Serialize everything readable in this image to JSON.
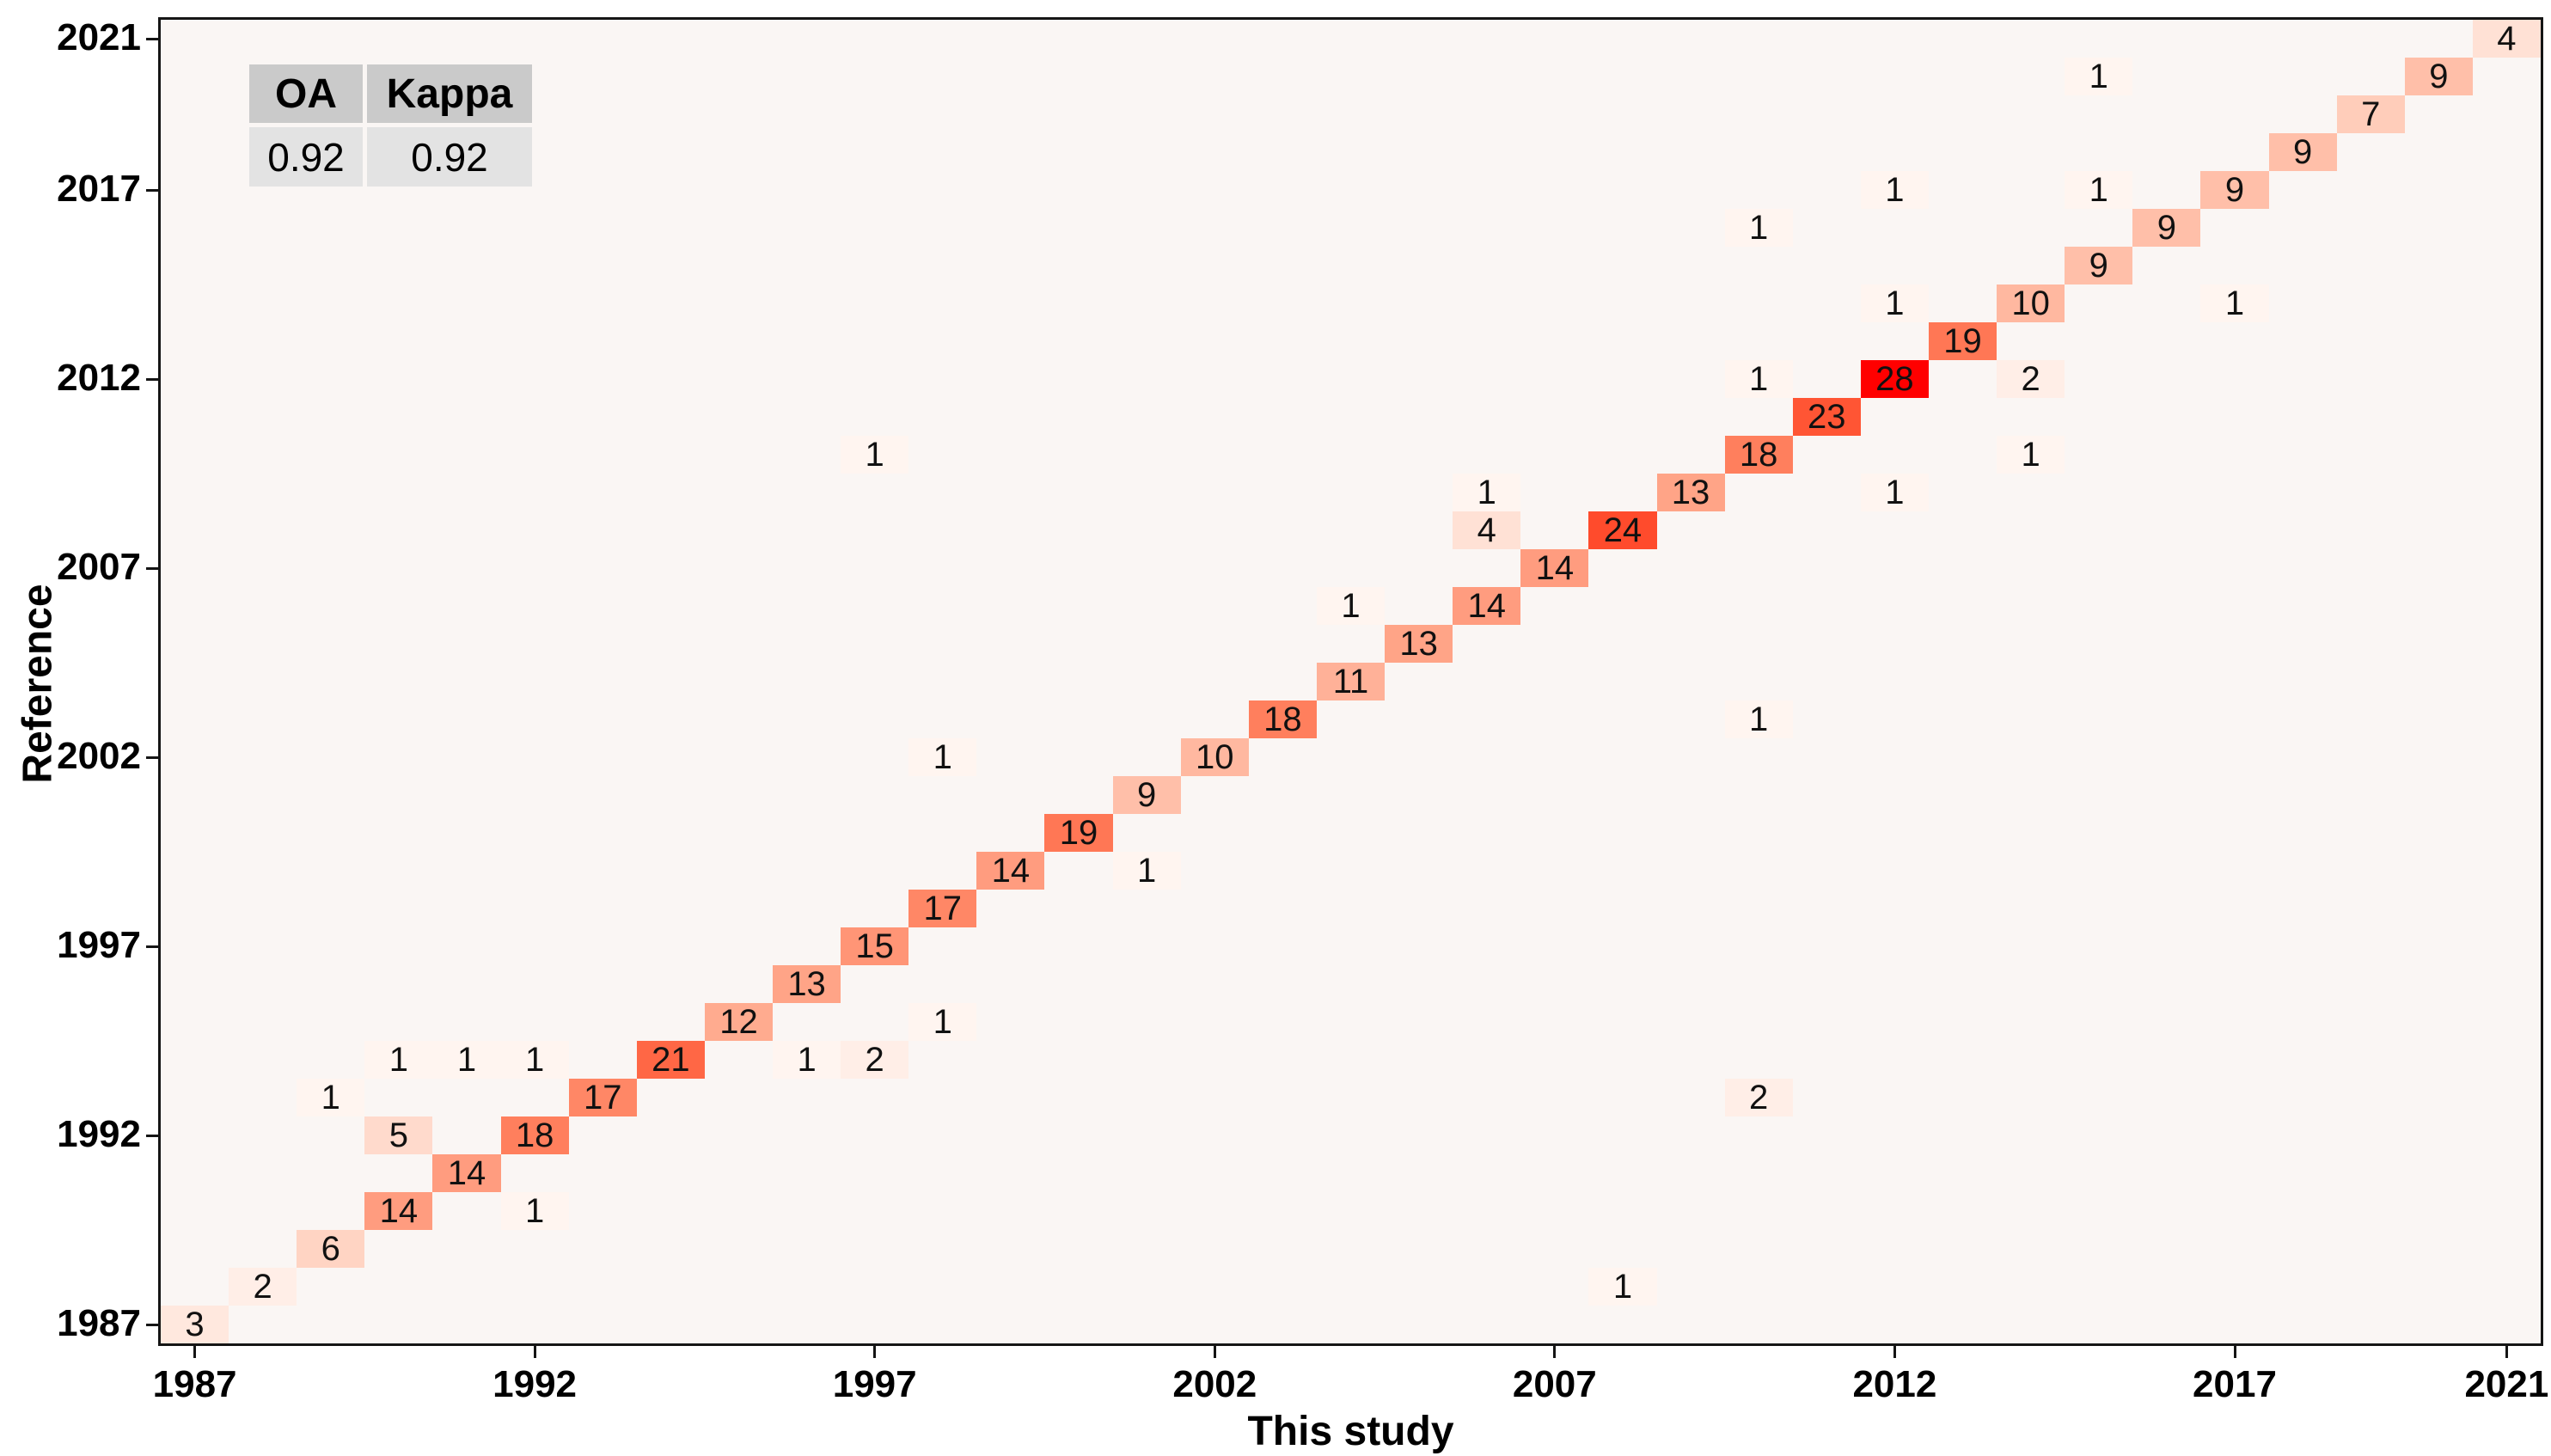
{
  "accuracy_table": {
    "oa_label": "OA",
    "kappa_label": "Kappa",
    "oa_value": "0.92",
    "kappa_value": "0.92"
  },
  "axes": {
    "x_title": "This study",
    "y_title": "Reference",
    "x_ticks": [
      1987,
      1992,
      1997,
      2002,
      2007,
      2012,
      2017,
      2021
    ],
    "y_ticks": [
      1987,
      1992,
      1997,
      2002,
      2007,
      2012,
      2017,
      2021
    ]
  },
  "chart_data": {
    "type": "heatmap",
    "title": "Confusion matrix of mapped change year (This study) vs reference change year",
    "xlabel": "This study",
    "ylabel": "Reference",
    "x_range": [
      1987,
      2021
    ],
    "y_range": [
      1987,
      2021
    ],
    "overall_accuracy": 0.92,
    "kappa": 0.92,
    "legend_position": "none",
    "grid": false,
    "colormap": {
      "low_color": "#fff5f0",
      "high_color": "#ff0000",
      "low_value": 1,
      "high_value": 28
    },
    "cells": [
      {
        "x": 1987,
        "y": 1987,
        "v": 3
      },
      {
        "x": 1988,
        "y": 1988,
        "v": 2
      },
      {
        "x": 2008,
        "y": 1988,
        "v": 1
      },
      {
        "x": 1989,
        "y": 1989,
        "v": 6
      },
      {
        "x": 1990,
        "y": 1990,
        "v": 14
      },
      {
        "x": 1992,
        "y": 1990,
        "v": 1
      },
      {
        "x": 1991,
        "y": 1991,
        "v": 14
      },
      {
        "x": 1990,
        "y": 1992,
        "v": 5
      },
      {
        "x": 1992,
        "y": 1992,
        "v": 18
      },
      {
        "x": 1989,
        "y": 1993,
        "v": 1
      },
      {
        "x": 1993,
        "y": 1993,
        "v": 17
      },
      {
        "x": 2010,
        "y": 1993,
        "v": 2
      },
      {
        "x": 1990,
        "y": 1994,
        "v": 1
      },
      {
        "x": 1991,
        "y": 1994,
        "v": 1
      },
      {
        "x": 1992,
        "y": 1994,
        "v": 1
      },
      {
        "x": 1994,
        "y": 1994,
        "v": 21
      },
      {
        "x": 1996,
        "y": 1994,
        "v": 1
      },
      {
        "x": 1997,
        "y": 1994,
        "v": 2
      },
      {
        "x": 1995,
        "y": 1995,
        "v": 12
      },
      {
        "x": 1998,
        "y": 1995,
        "v": 1
      },
      {
        "x": 1996,
        "y": 1996,
        "v": 13
      },
      {
        "x": 1997,
        "y": 1997,
        "v": 15
      },
      {
        "x": 1998,
        "y": 1998,
        "v": 17
      },
      {
        "x": 1999,
        "y": 1999,
        "v": 14
      },
      {
        "x": 2001,
        "y": 1999,
        "v": 1
      },
      {
        "x": 2000,
        "y": 2000,
        "v": 19
      },
      {
        "x": 2001,
        "y": 2001,
        "v": 9
      },
      {
        "x": 2002,
        "y": 2002,
        "v": 10
      },
      {
        "x": 1998,
        "y": 2002,
        "v": 1
      },
      {
        "x": 2003,
        "y": 2003,
        "v": 18
      },
      {
        "x": 2010,
        "y": 2003,
        "v": 1
      },
      {
        "x": 2004,
        "y": 2004,
        "v": 11
      },
      {
        "x": 2005,
        "y": 2005,
        "v": 13
      },
      {
        "x": 2004,
        "y": 2006,
        "v": 1
      },
      {
        "x": 2006,
        "y": 2006,
        "v": 14
      },
      {
        "x": 2007,
        "y": 2007,
        "v": 14
      },
      {
        "x": 2006,
        "y": 2008,
        "v": 4
      },
      {
        "x": 2008,
        "y": 2008,
        "v": 24
      },
      {
        "x": 2006,
        "y": 2009,
        "v": 1
      },
      {
        "x": 2009,
        "y": 2009,
        "v": 13
      },
      {
        "x": 2012,
        "y": 2009,
        "v": 1
      },
      {
        "x": 1997,
        "y": 2010,
        "v": 1
      },
      {
        "x": 2010,
        "y": 2010,
        "v": 18
      },
      {
        "x": 2014,
        "y": 2010,
        "v": 1
      },
      {
        "x": 2011,
        "y": 2011,
        "v": 23
      },
      {
        "x": 2010,
        "y": 2012,
        "v": 1
      },
      {
        "x": 2012,
        "y": 2012,
        "v": 28
      },
      {
        "x": 2014,
        "y": 2012,
        "v": 2
      },
      {
        "x": 2013,
        "y": 2013,
        "v": 19
      },
      {
        "x": 2012,
        "y": 2014,
        "v": 1
      },
      {
        "x": 2014,
        "y": 2014,
        "v": 10
      },
      {
        "x": 2017,
        "y": 2014,
        "v": 1
      },
      {
        "x": 2015,
        "y": 2015,
        "v": 9
      },
      {
        "x": 2010,
        "y": 2016,
        "v": 1
      },
      {
        "x": 2016,
        "y": 2016,
        "v": 9
      },
      {
        "x": 2012,
        "y": 2017,
        "v": 1
      },
      {
        "x": 2015,
        "y": 2017,
        "v": 1
      },
      {
        "x": 2017,
        "y": 2017,
        "v": 9
      },
      {
        "x": 2018,
        "y": 2018,
        "v": 9
      },
      {
        "x": 2019,
        "y": 2019,
        "v": 7
      },
      {
        "x": 2020,
        "y": 2020,
        "v": 9
      },
      {
        "x": 2015,
        "y": 2020,
        "v": 1
      },
      {
        "x": 2021,
        "y": 2021,
        "v": 4
      }
    ]
  }
}
